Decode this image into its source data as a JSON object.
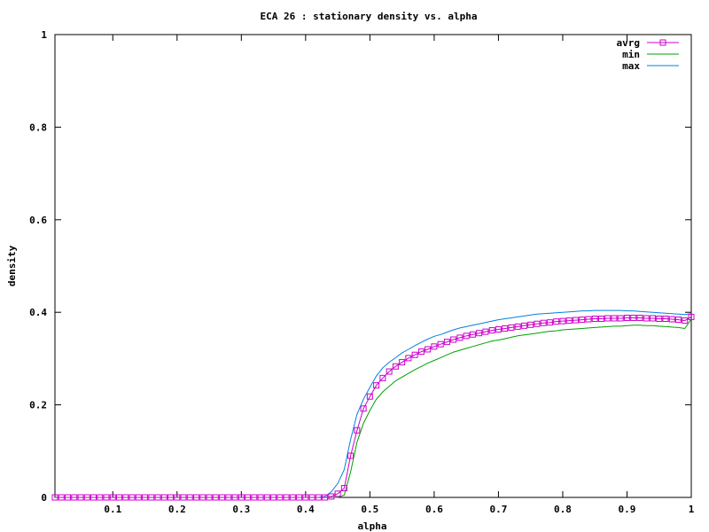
{
  "chart_data": {
    "type": "line",
    "title": "ECA 26 : stationary density vs. alpha",
    "xlabel": "alpha",
    "ylabel": "density",
    "xlim": [
      0.01,
      1.0
    ],
    "ylim": [
      0,
      1
    ],
    "xticks": [
      0.1,
      0.2,
      0.3,
      0.4,
      0.5,
      0.6,
      0.7,
      0.8,
      0.9,
      1
    ],
    "xtick_labels": [
      "0.1",
      "0.2",
      "0.3",
      "0.4",
      "0.5",
      "0.6",
      "0.7",
      "0.8",
      "0.9",
      "1"
    ],
    "yticks": [
      0,
      0.2,
      0.4,
      0.6,
      0.8,
      1
    ],
    "ytick_labels": [
      "0",
      "0.2",
      "0.4",
      "0.6",
      "0.8",
      "1"
    ],
    "grid": false,
    "legend_position": "top-right",
    "x": [
      0.01,
      0.02,
      0.03,
      0.04,
      0.05,
      0.06,
      0.07,
      0.08,
      0.09,
      0.1,
      0.11,
      0.12,
      0.13,
      0.14,
      0.15,
      0.16,
      0.17,
      0.18,
      0.19,
      0.2,
      0.21,
      0.22,
      0.23,
      0.24,
      0.25,
      0.26,
      0.27,
      0.28,
      0.29,
      0.3,
      0.31,
      0.32,
      0.33,
      0.34,
      0.35,
      0.36,
      0.37,
      0.38,
      0.39,
      0.4,
      0.41,
      0.42,
      0.43,
      0.44,
      0.45,
      0.46,
      0.47,
      0.48,
      0.49,
      0.5,
      0.51,
      0.52,
      0.53,
      0.54,
      0.55,
      0.56,
      0.57,
      0.58,
      0.59,
      0.6,
      0.61,
      0.62,
      0.63,
      0.64,
      0.65,
      0.66,
      0.67,
      0.68,
      0.69,
      0.7,
      0.71,
      0.72,
      0.73,
      0.74,
      0.75,
      0.76,
      0.77,
      0.78,
      0.79,
      0.8,
      0.81,
      0.82,
      0.83,
      0.84,
      0.85,
      0.86,
      0.87,
      0.88,
      0.89,
      0.9,
      0.91,
      0.92,
      0.93,
      0.94,
      0.95,
      0.96,
      0.97,
      0.98,
      0.99,
      1.0
    ],
    "series": [
      {
        "name": "avrg",
        "color": "#cc00cc",
        "marker": "square",
        "values": [
          0,
          0,
          0,
          0,
          0,
          0,
          0,
          0,
          0,
          0,
          0,
          0,
          0,
          0,
          0,
          0,
          0,
          0,
          0,
          0,
          0,
          0,
          0,
          0,
          0,
          0,
          0,
          0,
          0,
          0,
          0,
          0,
          0,
          0,
          0,
          0,
          0,
          0,
          0,
          0,
          0,
          0,
          0,
          0.002,
          0.008,
          0.02,
          0.09,
          0.145,
          0.192,
          0.218,
          0.242,
          0.258,
          0.272,
          0.283,
          0.292,
          0.301,
          0.308,
          0.315,
          0.32,
          0.326,
          0.331,
          0.336,
          0.341,
          0.345,
          0.349,
          0.352,
          0.355,
          0.358,
          0.361,
          0.363,
          0.365,
          0.367,
          0.369,
          0.371,
          0.373,
          0.375,
          0.377,
          0.378,
          0.38,
          0.381,
          0.382,
          0.383,
          0.384,
          0.385,
          0.386,
          0.386,
          0.387,
          0.387,
          0.387,
          0.388,
          0.388,
          0.388,
          0.387,
          0.387,
          0.386,
          0.386,
          0.385,
          0.384,
          0.382,
          0.39
        ]
      },
      {
        "name": "min",
        "color": "#00a000",
        "values": [
          0,
          0,
          0,
          0,
          0,
          0,
          0,
          0,
          0,
          0,
          0,
          0,
          0,
          0,
          0,
          0,
          0,
          0,
          0,
          0,
          0,
          0,
          0,
          0,
          0,
          0,
          0,
          0,
          0,
          0,
          0,
          0,
          0,
          0,
          0,
          0,
          0,
          0,
          0,
          0,
          0,
          0,
          0,
          0,
          0,
          0.005,
          0.055,
          0.12,
          0.16,
          0.188,
          0.212,
          0.228,
          0.24,
          0.252,
          0.26,
          0.268,
          0.276,
          0.283,
          0.29,
          0.296,
          0.302,
          0.308,
          0.314,
          0.318,
          0.322,
          0.326,
          0.33,
          0.334,
          0.338,
          0.34,
          0.343,
          0.346,
          0.349,
          0.351,
          0.353,
          0.355,
          0.357,
          0.359,
          0.36,
          0.362,
          0.363,
          0.364,
          0.365,
          0.366,
          0.367,
          0.368,
          0.369,
          0.37,
          0.37,
          0.371,
          0.372,
          0.372,
          0.371,
          0.371,
          0.37,
          0.369,
          0.368,
          0.367,
          0.365,
          0.385
        ]
      },
      {
        "name": "max",
        "color": "#0080e0",
        "values": [
          0,
          0,
          0,
          0,
          0,
          0,
          0,
          0,
          0,
          0,
          0,
          0,
          0,
          0,
          0,
          0,
          0,
          0,
          0,
          0,
          0,
          0,
          0,
          0,
          0,
          0,
          0,
          0,
          0,
          0,
          0,
          0,
          0,
          0,
          0,
          0,
          0,
          0,
          0,
          0,
          0,
          0,
          0.002,
          0.012,
          0.03,
          0.06,
          0.125,
          0.18,
          0.212,
          0.238,
          0.262,
          0.28,
          0.292,
          0.302,
          0.312,
          0.32,
          0.328,
          0.335,
          0.342,
          0.348,
          0.352,
          0.357,
          0.362,
          0.366,
          0.369,
          0.372,
          0.375,
          0.378,
          0.381,
          0.384,
          0.386,
          0.388,
          0.39,
          0.392,
          0.394,
          0.396,
          0.397,
          0.398,
          0.399,
          0.4,
          0.401,
          0.402,
          0.403,
          0.403,
          0.404,
          0.404,
          0.404,
          0.404,
          0.404,
          0.403,
          0.403,
          0.402,
          0.401,
          0.4,
          0.399,
          0.398,
          0.397,
          0.396,
          0.395,
          0.397
        ]
      }
    ]
  }
}
